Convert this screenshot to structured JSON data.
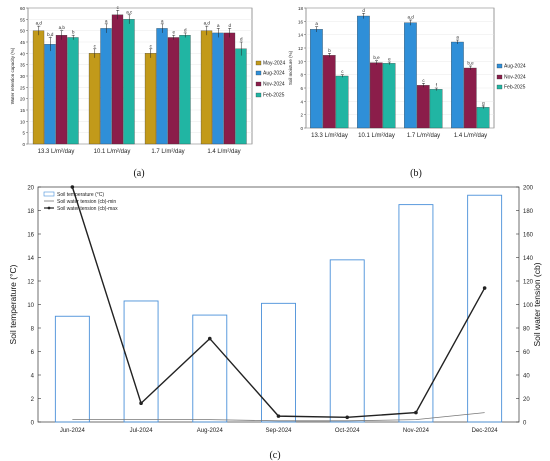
{
  "panels": [
    {
      "label": "(a)"
    },
    {
      "label": "(b)"
    },
    {
      "label": "(c)"
    }
  ],
  "chart_data": [
    {
      "type": "bar",
      "panel": "(a)",
      "categories": [
        "13.3 L/m²/day",
        "10.1 L/m²/day",
        "1.7 L/m²/day",
        "1.4 L/m²/day"
      ],
      "ylabel": "Water retention capacity (%)",
      "ylim": [
        0,
        60
      ],
      "yticks": [
        0,
        5,
        10,
        15,
        20,
        25,
        30,
        35,
        40,
        45,
        50,
        55,
        60
      ],
      "legend_position": "right",
      "series": [
        {
          "name": "May-2024",
          "color": "#c29a1a",
          "values": [
            50,
            40,
            40,
            50
          ],
          "errors": [
            2,
            2,
            2,
            2
          ],
          "letters": [
            "a,d",
            "c",
            "c",
            "a,d"
          ]
        },
        {
          "name": "Aug-2024",
          "color": "#2f8fd8",
          "values": [
            44,
            51,
            51,
            49
          ],
          "errors": [
            3,
            2,
            2,
            2
          ],
          "letters": [
            "b,d",
            "a",
            "a",
            "a"
          ]
        },
        {
          "name": "Nov-2024",
          "color": "#8b1d4a",
          "values": [
            48,
            57,
            47,
            49
          ],
          "errors": [
            2,
            2,
            1,
            2
          ],
          "letters": [
            "a,b",
            "c",
            "e",
            "d"
          ]
        },
        {
          "name": "Feb-2025",
          "color": "#21b5a3",
          "values": [
            47,
            55,
            48,
            42
          ],
          "errors": [
            1,
            2,
            1,
            3
          ],
          "letters": [
            "b",
            "a,c",
            "d",
            "d"
          ]
        }
      ]
    },
    {
      "type": "bar",
      "panel": "(b)",
      "categories": [
        "13.3 L/m²/day",
        "10.1 L/m²/day",
        "1.7 L/m²/day",
        "1.4 L/m²/day"
      ],
      "ylabel": "Soil moisture (%)",
      "ylim": [
        0,
        18
      ],
      "yticks": [
        0,
        2,
        4,
        6,
        8,
        10,
        12,
        14,
        16,
        18
      ],
      "legend_position": "right",
      "series": [
        {
          "name": "Aug-2024",
          "color": "#2f8fd8",
          "values": [
            14.8,
            16.8,
            15.8,
            12.9
          ],
          "errors": [
            0.4,
            0.4,
            0.4,
            0.3
          ],
          "letters": [
            "a",
            "d",
            "a,d",
            "a"
          ]
        },
        {
          "name": "Nov-2024",
          "color": "#8b1d4a",
          "values": [
            10.9,
            9.8,
            6.4,
            9.0
          ],
          "errors": [
            0.3,
            0.3,
            0.3,
            0.3
          ],
          "letters": [
            "b",
            "b,e",
            "c",
            "b,e"
          ]
        },
        {
          "name": "Feb-2025",
          "color": "#21b5a3",
          "values": [
            7.8,
            9.7,
            5.8,
            3.1
          ],
          "errors": [
            0.2,
            0.2,
            0.2,
            0.2
          ],
          "letters": [
            "c",
            "e",
            "f",
            "g"
          ]
        }
      ]
    },
    {
      "type": "bar+line",
      "panel": "(c)",
      "categories": [
        "Jun-2024",
        "Jul-2024",
        "Aug-2024",
        "Sep-2024",
        "Oct-2024",
        "Nov-2024",
        "Dec-2024"
      ],
      "ylabel_left": "Soil temperature (°C)",
      "ylabel_right": "Soil water tension (cb)",
      "ylim_left": [
        0,
        20
      ],
      "ylim_right": [
        0,
        200
      ],
      "yticks_left": [
        0,
        2,
        4,
        6,
        8,
        10,
        12,
        14,
        16,
        18,
        20
      ],
      "yticks_right": [
        0,
        20,
        40,
        60,
        80,
        100,
        120,
        140,
        160,
        180,
        200
      ],
      "legend_position": "top-left",
      "series": [
        {
          "name": "Soil temperature (°C)",
          "kind": "bar",
          "axis": "left",
          "color": "#4a90d9",
          "values": [
            9.0,
            10.3,
            9.1,
            10.1,
            13.8,
            18.5,
            19.3
          ]
        },
        {
          "name": "Soil water tension (cb)-min",
          "kind": "line",
          "axis": "right",
          "color": "#777777",
          "values": [
            2,
            2,
            2,
            1,
            1,
            2,
            8
          ]
        },
        {
          "name": "Soil water tension (cb)-max",
          "kind": "line-marker",
          "axis": "right",
          "color": "#222222",
          "values": [
            200,
            16,
            71,
            5,
            4,
            8,
            114
          ]
        }
      ]
    }
  ]
}
